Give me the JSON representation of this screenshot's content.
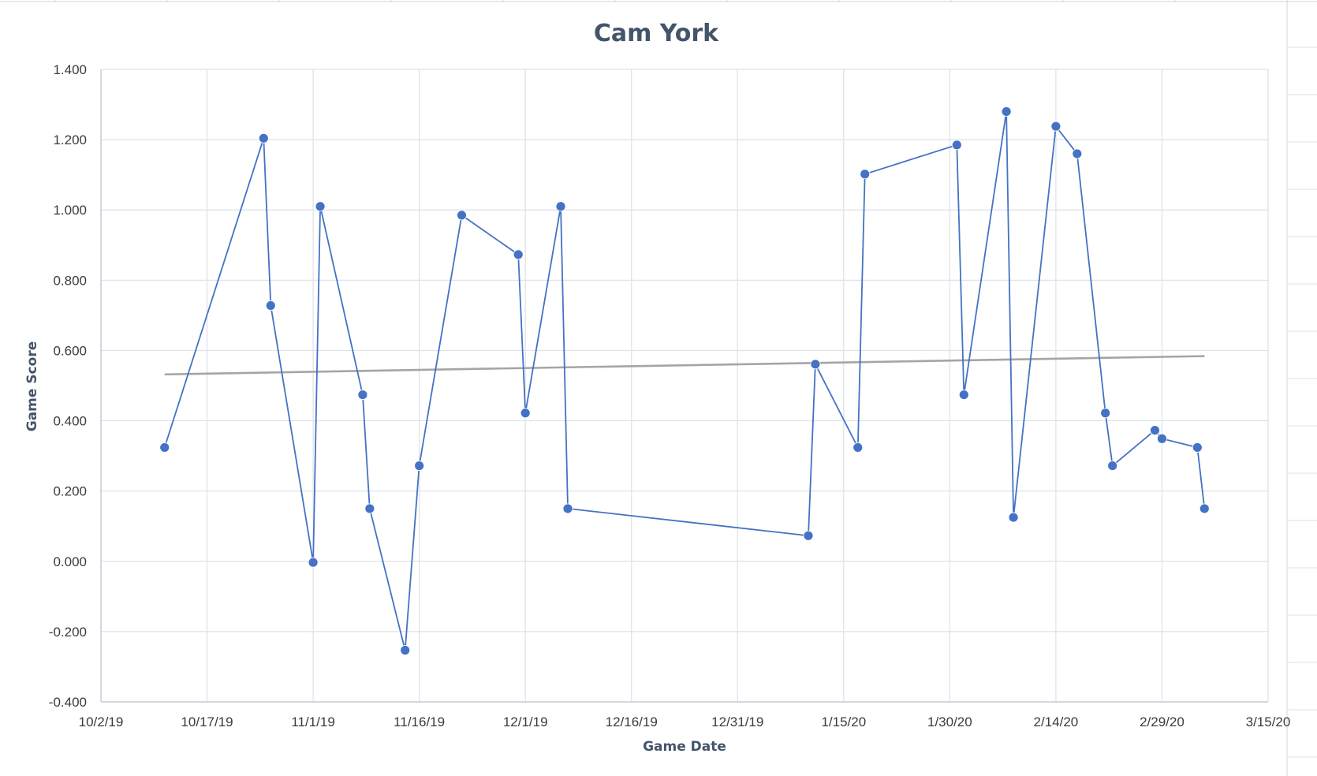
{
  "chart_data": {
    "type": "line",
    "title": "Cam York",
    "xlabel": "Game Date",
    "ylabel": "Game Score",
    "ylim": [
      -0.4,
      1.4
    ],
    "xlim": [
      "2019-10-02",
      "2020-03-15"
    ],
    "x_tick_labels": [
      "10/2/19",
      "10/17/19",
      "11/1/19",
      "11/16/19",
      "12/1/19",
      "12/16/19",
      "12/31/19",
      "1/15/20",
      "1/30/20",
      "2/14/20",
      "2/29/20",
      "3/15/20"
    ],
    "x_ticks": [
      "2019-10-02",
      "2019-10-17",
      "2019-11-01",
      "2019-11-16",
      "2019-12-01",
      "2019-12-16",
      "2019-12-31",
      "2020-01-15",
      "2020-01-30",
      "2020-02-14",
      "2020-02-29",
      "2020-03-15"
    ],
    "y_tick_labels": [
      "-0.400",
      "-0.200",
      "0.000",
      "0.200",
      "0.400",
      "0.600",
      "0.800",
      "1.000",
      "1.200",
      "1.400"
    ],
    "y_ticks": [
      -0.4,
      -0.2,
      0,
      0.2,
      0.4,
      0.6,
      0.8,
      1.0,
      1.2,
      1.4
    ],
    "grid": true,
    "legend": "none",
    "series": [
      {
        "color": "#4472c4",
        "points": [
          {
            "x": "2019-10-11",
            "y": 0.324
          },
          {
            "x": "2019-10-25",
            "y": 1.204
          },
          {
            "x": "2019-10-26",
            "y": 0.728
          },
          {
            "x": "2019-11-01",
            "y": -0.003
          },
          {
            "x": "2019-11-02",
            "y": 1.01
          },
          {
            "x": "2019-11-08",
            "y": 0.474
          },
          {
            "x": "2019-11-09",
            "y": 0.15
          },
          {
            "x": "2019-11-14",
            "y": -0.253
          },
          {
            "x": "2019-11-16",
            "y": 0.272
          },
          {
            "x": "2019-11-22",
            "y": 0.985
          },
          {
            "x": "2019-11-30",
            "y": 0.873
          },
          {
            "x": "2019-12-01",
            "y": 0.422
          },
          {
            "x": "2019-12-06",
            "y": 1.01
          },
          {
            "x": "2019-12-07",
            "y": 0.15
          },
          {
            "x": "2020-01-10",
            "y": 0.073
          },
          {
            "x": "2020-01-11",
            "y": 0.561
          },
          {
            "x": "2020-01-17",
            "y": 0.324
          },
          {
            "x": "2020-01-18",
            "y": 1.102
          },
          {
            "x": "2020-01-31",
            "y": 1.185
          },
          {
            "x": "2020-02-01",
            "y": 0.474
          },
          {
            "x": "2020-02-07",
            "y": 1.28
          },
          {
            "x": "2020-02-08",
            "y": 0.125
          },
          {
            "x": "2020-02-14",
            "y": 1.238
          },
          {
            "x": "2020-02-17",
            "y": 1.16
          },
          {
            "x": "2020-02-21",
            "y": 0.422
          },
          {
            "x": "2020-02-22",
            "y": 0.272
          },
          {
            "x": "2020-02-28",
            "y": 0.373
          },
          {
            "x": "2020-02-29",
            "y": 0.349
          },
          {
            "x": "2020-03-05",
            "y": 0.324
          },
          {
            "x": "2020-03-06",
            "y": 0.15
          }
        ]
      }
    ],
    "trendline": {
      "type": "linear",
      "color": "#a5a5a5",
      "start": {
        "x": "2019-10-11",
        "y": 0.532
      },
      "end": {
        "x": "2020-03-06",
        "y": 0.584
      }
    }
  }
}
